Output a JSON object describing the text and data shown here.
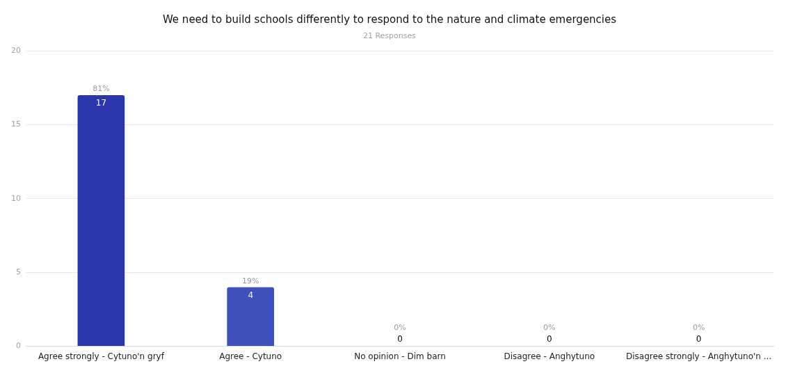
{
  "chart_data": {
    "type": "bar",
    "title": "We need to build schools differently to respond to the nature and climate emergencies",
    "subtitle": "21 Responses",
    "categories": [
      "Agree strongly - Cytuno'n gryf",
      "Agree - Cytuno",
      "No opinion - Dim barn",
      "Disagree - Anghytuno",
      "Disagree strongly - Anghytuno'n ..."
    ],
    "values": [
      17,
      4,
      0,
      0,
      0
    ],
    "colors": [
      "#2b36ad",
      "#3f4fbb",
      "#6a6fd5",
      "#7c7edb",
      "#9b97e0"
    ],
    "value_labels": [
      "17",
      "4",
      "0",
      "0",
      "0"
    ],
    "annotations": [
      {
        "text": "81%",
        "x": "Agree strongly - Cytuno'n gryf",
        "y": 17
      },
      {
        "text": "19%",
        "x": "Agree - Cytuno",
        "y": 4
      },
      {
        "text": "0%",
        "x": "No opinion - Dim barn",
        "y": 0
      },
      {
        "text": "0%",
        "x": "Disagree - Anghytuno",
        "y": 0
      },
      {
        "text": "0%",
        "x": "Disagree strongly - Anghytuno'n ...",
        "y": 0
      }
    ],
    "ylim": [
      0,
      20
    ],
    "yticks": [
      0,
      5,
      10,
      15,
      20
    ],
    "grid": "y",
    "legend": false
  }
}
